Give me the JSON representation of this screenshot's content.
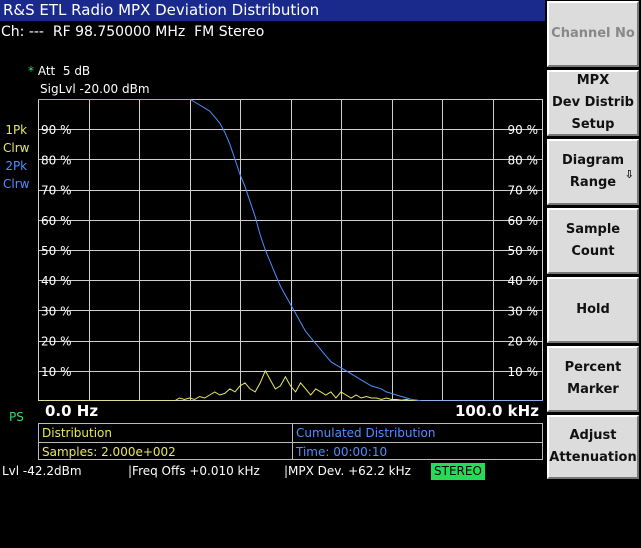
{
  "title": "R&S ETL Radio MPX Deviation Distribution",
  "channel_line": "Ch: ---  RF 98.750000 MHz  FM Stereo",
  "att_star": "*",
  "att_text": "Att  5 dB",
  "siglvl": "SigLvl -20.00 dBm",
  "traces": [
    {
      "line1": "1Pk",
      "line2": "Clrw",
      "color": "#e8e860"
    },
    {
      "line1": "2Pk",
      "line2": "Clrw",
      "color": "#4f8fff"
    }
  ],
  "ps_label": "PS",
  "x_start": "0.0 Hz",
  "x_stop": "100.0 kHz",
  "info": {
    "distribution": "Distribution",
    "samples": "Samples: 2.000e+002",
    "cumulated": "Cumulated Distribution",
    "time": "Time: 00:00:10"
  },
  "status": {
    "lvl": "Lvl -42.2dBm",
    "freq_offs": "|Freq Offs +0.010 kHz",
    "mpx_dev": "|MPX Dev. +62.2 kHz",
    "stereo": "STEREO"
  },
  "softkeys": [
    {
      "label": "Channel No",
      "enabled": false,
      "arrow": false
    },
    {
      "label": "MPX\nDev Distrib\nSetup",
      "enabled": true,
      "arrow": false
    },
    {
      "label": "Diagram\nRange",
      "enabled": true,
      "arrow": true
    },
    {
      "label": "Sample\nCount",
      "enabled": true,
      "arrow": false
    },
    {
      "label": "Hold",
      "enabled": true,
      "arrow": false
    },
    {
      "label": "Percent\nMarker",
      "enabled": true,
      "arrow": false
    },
    {
      "label": "Adjust\nAttenuation",
      "enabled": true,
      "arrow": false
    }
  ],
  "colors": {
    "title_bg": "#1a2a8c",
    "trace1": "#e8e860",
    "trace2": "#4f8fff",
    "stereo_bg": "#22dd55"
  },
  "chart_data": {
    "type": "line",
    "x_range_khz": [
      0,
      100
    ],
    "y_range_pct": [
      0,
      100
    ],
    "y_tick_labels": [
      "10 %",
      "20 %",
      "30 %",
      "40 %",
      "50 %",
      "60 %",
      "70 %",
      "80 %",
      "90 %"
    ],
    "grid": true,
    "series": [
      {
        "trace": "1Pk Clrw",
        "color": "#e8e860",
        "x": [
          0,
          27,
          28,
          29,
          30,
          31,
          32,
          33,
          34,
          35,
          36,
          37,
          38,
          39,
          40,
          41,
          42,
          43,
          44,
          45,
          46,
          47,
          48,
          49,
          50,
          51,
          52,
          53,
          54,
          55,
          56,
          57,
          58,
          59,
          60,
          61,
          62,
          63,
          64,
          65,
          66,
          67,
          68,
          69,
          70,
          71,
          72,
          73,
          74,
          75,
          100
        ],
        "y": [
          0,
          0,
          1,
          0.5,
          1,
          0.5,
          1.5,
          1,
          2,
          3,
          2,
          2.5,
          4,
          3,
          5,
          6,
          4,
          3,
          6,
          10,
          7,
          4,
          5,
          8,
          5,
          3,
          6,
          4,
          2,
          4,
          3,
          2,
          3,
          1,
          3,
          2,
          1,
          2,
          1,
          1.5,
          1,
          1,
          0.5,
          1,
          0.5,
          0.5,
          0.3,
          0.5,
          0,
          0,
          0
        ]
      },
      {
        "trace": "2Pk Clrw",
        "color": "#4f8fff",
        "x": [
          0,
          30,
          31,
          32,
          33,
          34,
          35,
          36,
          37,
          38,
          39,
          40,
          41,
          42,
          43,
          44,
          45,
          46,
          47,
          48,
          49,
          50,
          51,
          52,
          53,
          54,
          55,
          56,
          57,
          58,
          59,
          60,
          61,
          62,
          63,
          64,
          65,
          66,
          67,
          68,
          69,
          70,
          71,
          72,
          73,
          74,
          75,
          76,
          100
        ],
        "y": [
          100,
          100,
          99,
          98,
          97,
          96,
          94,
          92,
          89,
          85,
          80,
          75,
          71,
          66,
          61,
          55,
          50,
          46,
          42,
          38,
          35,
          32,
          29,
          26,
          23,
          21,
          19,
          17,
          15,
          13,
          12,
          11,
          10,
          9,
          8,
          7,
          6,
          5,
          4.5,
          4,
          3,
          2.5,
          2,
          1.5,
          1,
          0.5,
          0.3,
          0,
          0
        ]
      }
    ]
  }
}
